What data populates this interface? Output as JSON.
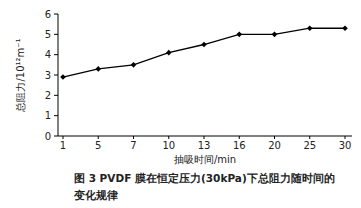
{
  "chart_data": {
    "type": "line",
    "title": "图 3   PVDF 膜在恒定压力(30kPa)下总阻力随时间的变化规律",
    "x_label": "抽吸时间/min",
    "y_label": "总阻力/10¹²m⁻¹",
    "categories": [
      "1",
      "5",
      "7",
      "10",
      "13",
      "16",
      "20",
      "25",
      "30"
    ],
    "values": [
      2.9,
      3.3,
      3.5,
      4.1,
      4.5,
      5.0,
      5.0,
      5.3,
      5.3
    ],
    "color": "#000000",
    "marker": "diamond",
    "ylim": [
      0,
      6
    ],
    "yticks": [
      0,
      1,
      2,
      3,
      4,
      5,
      6
    ],
    "grid": false
  }
}
